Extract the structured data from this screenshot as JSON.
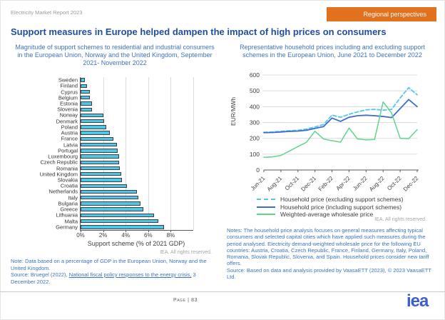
{
  "header": {
    "report_name": "Electricity Market Report 2023",
    "badge_label": "Regional perspectives",
    "title": "Support measures in Europe helped dampen the impact of high prices on consumers"
  },
  "left": {
    "rights": "IEA. All rights reserved.",
    "note": "Note: Data based on a percentage of GDP in the European Union, Norway and the United Kingdom.",
    "source_prefix": "Source: Bruegel (2022), ",
    "source_link": "National fiscal policy responses to the energy crisis,",
    "source_suffix": " 3 December 2022."
  },
  "right": {
    "rights": "IEA. All rights reserved.",
    "notes": "Notes: The household price analysis focuses on general measures affecting typical consumers and selected capital cities which have applied such measures during the period analysed. Electricity demand-weighted wholesale price for the following EU countries: Austria, Croatia, Czech Republic, France, Finland, Germany, Italy, Poland, Romania, Slovak Republic, Slovenia, and Spain. Household prices consider new tariff offers.",
    "source": "Source: Based on data and analysis provided by VaasaETT (2023), © 2023 VaasaETT Ltd."
  },
  "footer": {
    "page_label": "Page | 83",
    "logo_text": "iea"
  },
  "colors": {
    "accent_orange": "#e2711d",
    "title_blue": "#1f4e9c",
    "body_blue": "#3e74bd",
    "bar_fill": "#4dc7e8",
    "logo_blue": "#3d5dd4"
  },
  "chart_data": [
    {
      "type": "bar",
      "orientation": "horizontal",
      "title": "Magnitude of support schemes to residential and industrial consumers in the European Union, Norway and the United Kingdom, September 2021- November 2022",
      "categories": [
        "Sweden",
        "Finland",
        "Cyprus",
        "Belgium",
        "Estonia",
        "Slovenia",
        "Norway",
        "Denmark",
        "Poland",
        "Austria",
        "France",
        "Latvia",
        "Portugal",
        "Luxembourg",
        "Czech Republic",
        "Romania",
        "United Kingdom",
        "Slovakia",
        "Croatia",
        "Netherlands",
        "Italy",
        "Bulgaria",
        "Greece",
        "Lithuania",
        "Malta",
        "Germany"
      ],
      "values": [
        0.4,
        0.6,
        0.8,
        0.8,
        1.0,
        1.0,
        2.0,
        2.1,
        2.3,
        2.6,
        2.9,
        3.2,
        3.3,
        3.4,
        3.4,
        3.5,
        3.6,
        3.7,
        4.1,
        5.0,
        5.1,
        5.3,
        5.6,
        6.5,
        6.9,
        7.4
      ],
      "xlabel": "Support scheme (% of 2021 GDP)",
      "xticks": [
        "0%",
        "2%",
        "4%",
        "6%",
        "8%"
      ],
      "xtick_values": [
        0,
        2,
        4,
        6,
        8
      ],
      "gridlines_pct": [
        2,
        4,
        6,
        8,
        10
      ],
      "xlim": [
        0,
        10
      ],
      "bar_color": "#4dc7e8",
      "bar_border": "#3f3f3f"
    },
    {
      "type": "line",
      "title": "Representative household prices including and excluding support schemes in the European Union, June 2021 to December 2022",
      "ylabel": "EUR/MWh",
      "ylim": [
        0,
        600
      ],
      "yticks": [
        0,
        100,
        200,
        300,
        400,
        500,
        600
      ],
      "x": [
        "Jun-21",
        "Jul-21",
        "Aug-21",
        "Sep-21",
        "Oct-21",
        "Nov-21",
        "Dec-21",
        "Jan-22",
        "Feb-22",
        "Mar-22",
        "Apr-22",
        "May-22",
        "Jun-22",
        "Jul-22",
        "Aug-22",
        "Sep-22",
        "Oct-22",
        "Nov-22",
        "Dec-22"
      ],
      "xtick_every": 2,
      "grid": true,
      "legend_position": "bottom",
      "series": [
        {
          "name": "Household price (excluding support schemes)",
          "color": "#55c7ee",
          "dash": true,
          "width": 1.8,
          "values": [
            238,
            240,
            244,
            248,
            251,
            258,
            272,
            287,
            347,
            333,
            352,
            367,
            380,
            383,
            378,
            383,
            455,
            520,
            475
          ]
        },
        {
          "name": "Household price (including support schemes)",
          "color": "#3e6ec9",
          "dash": false,
          "width": 1.8,
          "values": [
            236,
            237,
            240,
            244,
            246,
            251,
            263,
            274,
            328,
            307,
            333,
            343,
            346,
            343,
            338,
            331,
            388,
            445,
            400
          ]
        },
        {
          "name": "Weighted-average wholesale price",
          "color": "#5fd68a",
          "dash": false,
          "width": 1.5,
          "values": [
            80,
            83,
            92,
            120,
            148,
            175,
            245,
            196,
            185,
            176,
            265,
            196,
            190,
            193,
            430,
            360,
            200,
            198,
            255
          ]
        }
      ]
    }
  ]
}
